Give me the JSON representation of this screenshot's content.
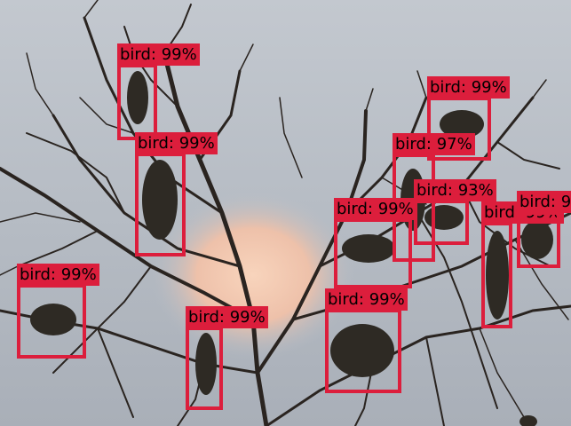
{
  "image": {
    "description_colors": {
      "sky": "#b9c0c8",
      "glow": "#f4c8b0",
      "branches": "#2a2420",
      "birds": "#2e2a24",
      "box": "#dc1e3c"
    }
  },
  "detections": [
    {
      "label": "bird: 99%"
    },
    {
      "label": "bird: 99%"
    },
    {
      "label": "bird: 99%"
    },
    {
      "label": "bird: 97%"
    },
    {
      "label": "bird: 93%"
    },
    {
      "label": "bird: 99%"
    },
    {
      "label": "bird: 99%"
    },
    {
      "label": "bird: 9"
    },
    {
      "label": "bird: 99%"
    },
    {
      "label": "bird: 99%"
    },
    {
      "label": "bird: 99%"
    }
  ]
}
